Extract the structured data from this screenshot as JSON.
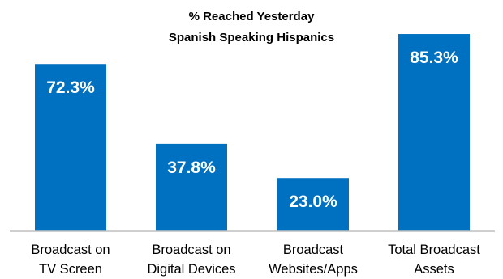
{
  "chart_data": {
    "type": "bar",
    "title_lines": [
      "% Reached Yesterday",
      "Spanish Speaking Hispanics"
    ],
    "categories": [
      [
        "Broadcast on",
        "TV Screen"
      ],
      [
        "Broadcast on",
        "Digital Devices"
      ],
      [
        "Broadcast",
        "Websites/Apps"
      ],
      [
        "Total Broadcast",
        "Assets"
      ]
    ],
    "values": [
      72.3,
      37.8,
      23.0,
      85.3
    ],
    "value_labels": [
      "72.3%",
      "37.8%",
      "23.0%",
      "85.3%"
    ],
    "ylim": [
      0,
      100
    ],
    "grid": false,
    "legend": "none",
    "bar_color": "#0070c0",
    "axis_color": "#bfbfbf"
  }
}
